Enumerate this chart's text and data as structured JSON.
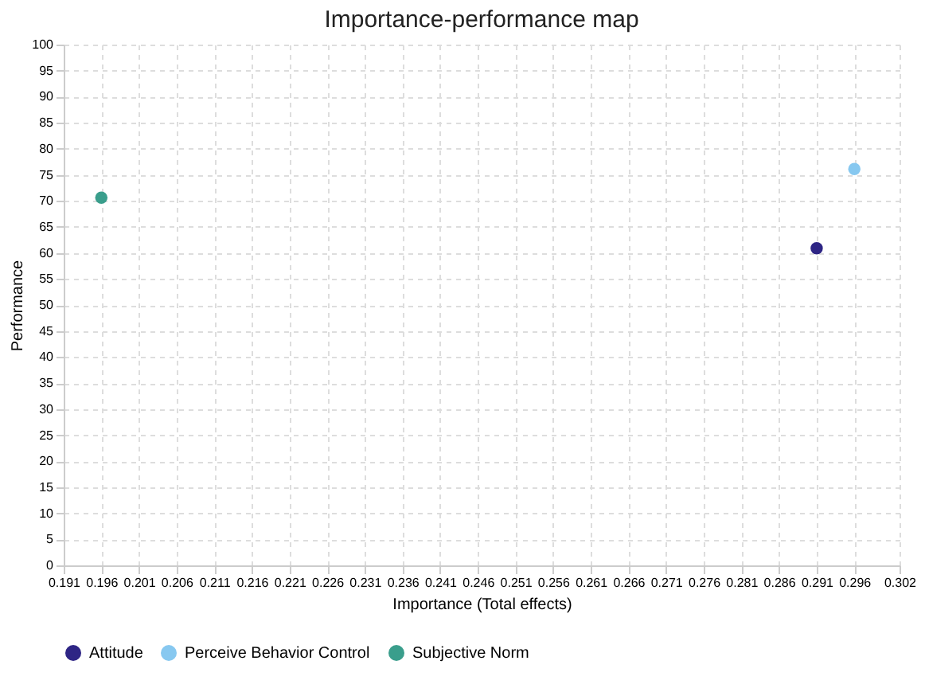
{
  "chart_data": {
    "type": "scatter",
    "title": "Importance-performance map",
    "xlabel": "Importance (Total effects)",
    "ylabel": "Performance",
    "series": [
      {
        "name": "Attitude",
        "color": "#2e2585",
        "x": [
          0.291
        ],
        "values": [
          60.9
        ]
      },
      {
        "name": "Perceive Behavior Control",
        "color": "#87c8f0",
        "x": [
          0.296
        ],
        "values": [
          76.1
        ]
      },
      {
        "name": "Subjective Norm",
        "color": "#3a9e8c",
        "x": [
          0.196
        ],
        "values": [
          70.6
        ]
      }
    ],
    "xlim": [
      0.191,
      0.302
    ],
    "xticks": [
      0.191,
      0.196,
      0.201,
      0.206,
      0.211,
      0.216,
      0.221,
      0.226,
      0.231,
      0.236,
      0.241,
      0.246,
      0.251,
      0.256,
      0.261,
      0.266,
      0.271,
      0.276,
      0.281,
      0.286,
      0.291,
      0.296,
      0.302
    ],
    "ylim": [
      0,
      100
    ],
    "yticks": [
      0,
      5,
      10,
      15,
      20,
      25,
      30,
      35,
      40,
      45,
      50,
      55,
      60,
      65,
      70,
      75,
      80,
      85,
      90,
      95,
      100
    ],
    "grid": true,
    "legend": "bottom",
    "marker": "circle"
  }
}
